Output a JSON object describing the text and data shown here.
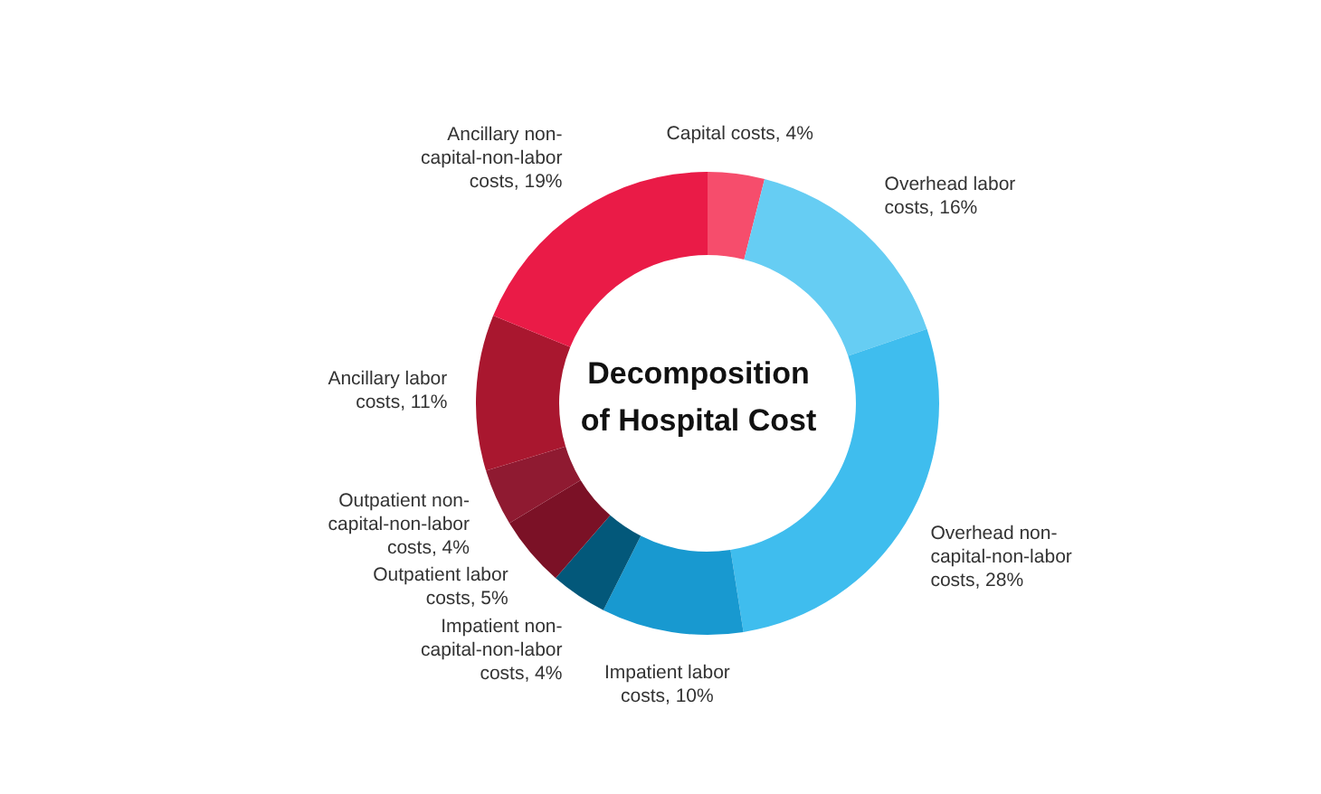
{
  "chart_data": {
    "type": "donut",
    "title": "Decomposition of Hospital Cost",
    "categories": [
      "Capital costs",
      "Overhead labor costs",
      "Overhead non-capital-non-labor costs",
      "Impatient labor costs",
      "Impatient non-capital-non-labor costs",
      "Outpatient labor costs",
      "Outpatient non-capital-non-labor costs",
      "Ancillary labor costs",
      "Ancillary non-capital-non-labor costs"
    ],
    "values": [
      4,
      16,
      28,
      10,
      4,
      5,
      4,
      11,
      19
    ],
    "value_labels": [
      "4%",
      "16%",
      "28%",
      "10%",
      "4%",
      "5%",
      "4%",
      "11%",
      "19%"
    ],
    "colors": [
      "#f64d6c",
      "#66cdf3",
      "#3fbdee",
      "#1899d0",
      "#03587a",
      "#7b1126",
      "#8f1a31",
      "#a9172f",
      "#ea1b47"
    ]
  }
}
